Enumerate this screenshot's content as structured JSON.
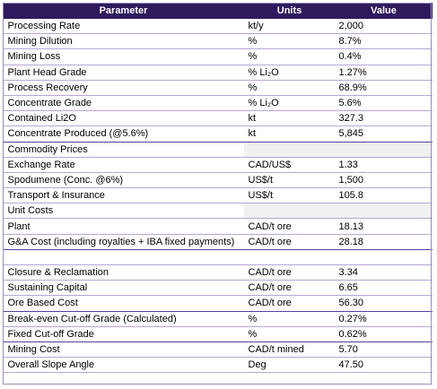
{
  "table": {
    "headers": [
      "Parameter",
      "Units",
      "Value"
    ],
    "rows": [
      {
        "parameter": "Processing Rate",
        "units": "kt/y",
        "value": "2,000"
      },
      {
        "parameter": "Mining Dilution",
        "units": "%",
        "value": "8.7%"
      },
      {
        "parameter": "Mining Loss",
        "units": "%",
        "value": "0.4%"
      },
      {
        "parameter": "Plant Head Grade",
        "units": "% Li₂O",
        "value": "1.27%"
      },
      {
        "parameter": "Process Recovery",
        "units": "%",
        "value": "68.9%"
      },
      {
        "parameter": "Concentrate Grade",
        "units": "% Li₂O",
        "value": "5.6%"
      },
      {
        "parameter": "Contained Li2O",
        "units": "kt",
        "value": "327.3"
      },
      {
        "parameter": "Concentrate Produced (@5.6%)",
        "units": "kt",
        "value": "5,845"
      },
      {
        "parameter": "Commodity Prices",
        "units": "",
        "value": ""
      },
      {
        "parameter": "Exchange Rate",
        "units": "CAD/US$",
        "value": "1.33"
      },
      {
        "parameter": "Spodumene (Conc. @6%)",
        "units": "US$/t",
        "value": "1,500"
      },
      {
        "parameter": "Transport & Insurance",
        "units": "US$/t",
        "value": "105.8"
      },
      {
        "parameter": "Unit Costs",
        "units": "",
        "value": ""
      },
      {
        "parameter": "Plant",
        "units": "CAD/t ore",
        "value": "18.13"
      },
      {
        "parameter": "G&A Cost (including royalties + IBA fixed payments)",
        "units": "CAD/t ore",
        "value": "28.18"
      },
      {
        "parameter": "",
        "units": "",
        "value": ""
      },
      {
        "parameter": "Closure & Reclamation",
        "units": "CAD/t ore",
        "value": "3.34"
      },
      {
        "parameter": "Sustaining Capital",
        "units": "CAD/t ore",
        "value": "6.65"
      },
      {
        "parameter": "Ore Based Cost",
        "units": "CAD/t ore",
        "value": "56.30"
      },
      {
        "parameter": "Break-even Cut-off Grade (Calculated)",
        "units": "%",
        "value": "0.27%"
      },
      {
        "parameter": "Fixed Cut-off Grade",
        "units": "%",
        "value": "0.62%"
      },
      {
        "parameter": "Mining Cost",
        "units": "CAD/t mined",
        "value": "5.70"
      },
      {
        "parameter": "Overall Slope Angle",
        "units": "Deg",
        "value": "47.50"
      }
    ]
  }
}
